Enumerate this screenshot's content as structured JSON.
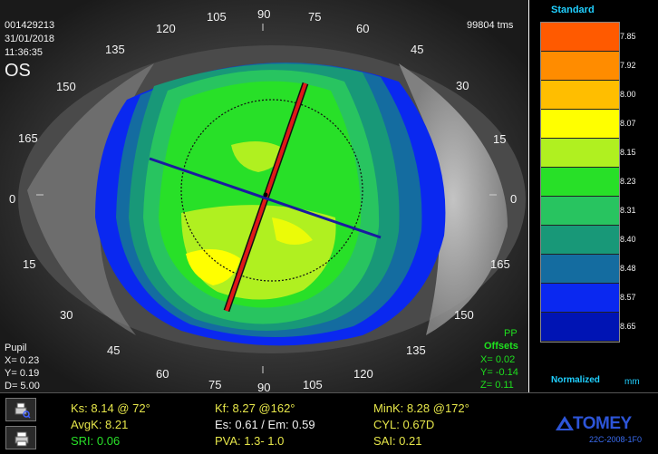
{
  "header": {
    "patient_id": "001429213",
    "date": "31/01/2018",
    "time": "11:36:35",
    "eye": "OS",
    "ms": "99804 tms"
  },
  "meridians": {
    "top": [
      "120",
      "105",
      "90",
      "75",
      "60",
      "45",
      "30",
      "135",
      "150",
      "165"
    ],
    "right": [
      "15",
      "0",
      "165",
      "150",
      "135"
    ],
    "left": [
      "0",
      "15",
      "30"
    ],
    "bottom": [
      "45",
      "60",
      "75",
      "90",
      "105",
      "120"
    ]
  },
  "pupil": {
    "label": "Pupil",
    "x": "X=  0.23",
    "y": "Y=  0.19",
    "d": "D=  5.00"
  },
  "pp": {
    "title": "PP",
    "subtitle": "Offsets",
    "x": "X=  0.02",
    "y": "Y= -0.14",
    "z": "Z=  0.11"
  },
  "legend": {
    "header": "Standard",
    "footer": "Normalized",
    "unit": "mm",
    "values": [
      "7.85",
      "7.92",
      "8.00",
      "8.07",
      "8.15",
      "8.23",
      "8.31",
      "8.40",
      "8.48",
      "8.57",
      "8.65"
    ],
    "colors": [
      "#ff5a00",
      "#ff8c00",
      "#ffbe00",
      "#ffff00",
      "#b0f020",
      "#28e028",
      "#28c460",
      "#189878",
      "#146ca0",
      "#0a28f0",
      "#0014b4"
    ]
  },
  "stats": {
    "ks": "Ks: 8.14 @ 72°",
    "kf": "Kf: 8.27 @162°",
    "mink": "MinK: 8.28 @172°",
    "avgk": "AvgK: 8.21",
    "es_em": "Es: 0.61 / Em: 0.59",
    "cyl": "CYL:  0.67D",
    "sri": "SRI: 0.06",
    "pva": "PVA:   1.3-  1.0",
    "sai": "SAI: 0.21"
  },
  "brand": {
    "name": "TOMEY",
    "model": "22C-2008-1F0"
  },
  "icons": [
    "zoom-print-icon",
    "printer-icon",
    "tomey-logo-icon"
  ]
}
